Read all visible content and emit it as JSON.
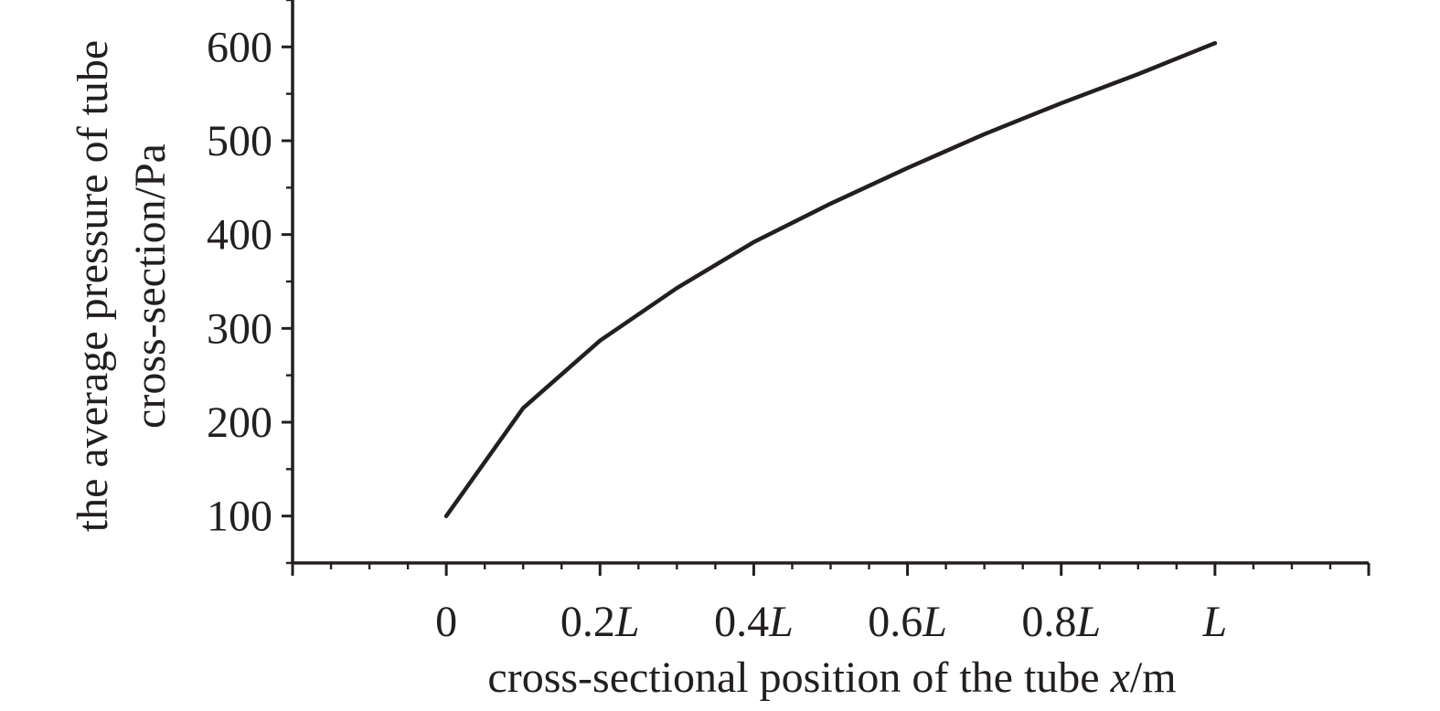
{
  "chart_data": {
    "type": "line",
    "title": "",
    "xlabel": "cross-sectional position of the tube x/m",
    "xlabel_parts": {
      "before": "cross-sectional position of the tube ",
      "var": "x",
      "after": "/m"
    },
    "ylabel_lines": [
      "the average pressure of tube",
      "cross-section/Pa"
    ],
    "x_ticks": [
      "0",
      "0.2L",
      "0.4L",
      "0.6L",
      "0.8L",
      "L"
    ],
    "x_tick_values": [
      0,
      0.2,
      0.4,
      0.6,
      0.8,
      1.0
    ],
    "y_ticks": [
      "100",
      "200",
      "300",
      "400",
      "500",
      "600"
    ],
    "y_tick_values": [
      100,
      200,
      300,
      400,
      500,
      600
    ],
    "xlim": [
      -0.2,
      1.2
    ],
    "ylim": [
      50,
      650
    ],
    "grid": false,
    "legend": "none",
    "series": [
      {
        "color": "#231f20",
        "x": [
          0,
          0.1,
          0.2,
          0.3,
          0.4,
          0.5,
          0.6,
          0.7,
          0.8,
          0.9,
          1.0
        ],
        "y": [
          100,
          215,
          287,
          343,
          392,
          433,
          471,
          507,
          540,
          571,
          604
        ]
      }
    ]
  }
}
